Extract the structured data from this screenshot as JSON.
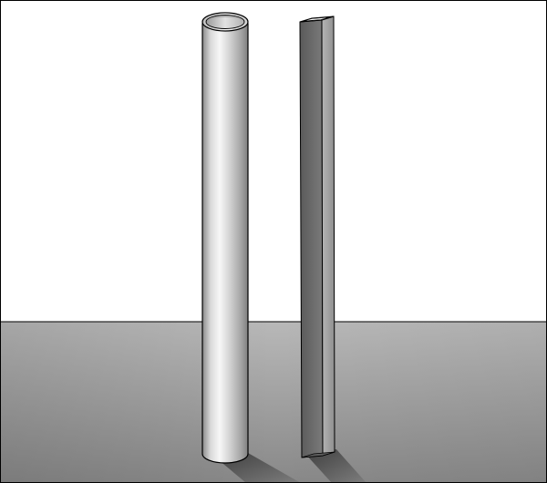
{
  "scene": {
    "colors": {
      "background": "#ffffff",
      "floor_light": "#b3b3b3",
      "floor_dark": "#8c8c8c",
      "shadow": "#4f4f4f",
      "tube_highlight": "#f2f2f2",
      "tube_mid": "#c2c2c2",
      "tube_dark": "#7a7a7a",
      "bar_face": "#6a6a6a",
      "bar_side": "#9a9a9a",
      "outline": "#000000"
    },
    "objects": [
      {
        "name": "round-tube",
        "shape": "cylinder"
      },
      {
        "name": "flat-bar",
        "shape": "rectangular-bar"
      }
    ]
  }
}
